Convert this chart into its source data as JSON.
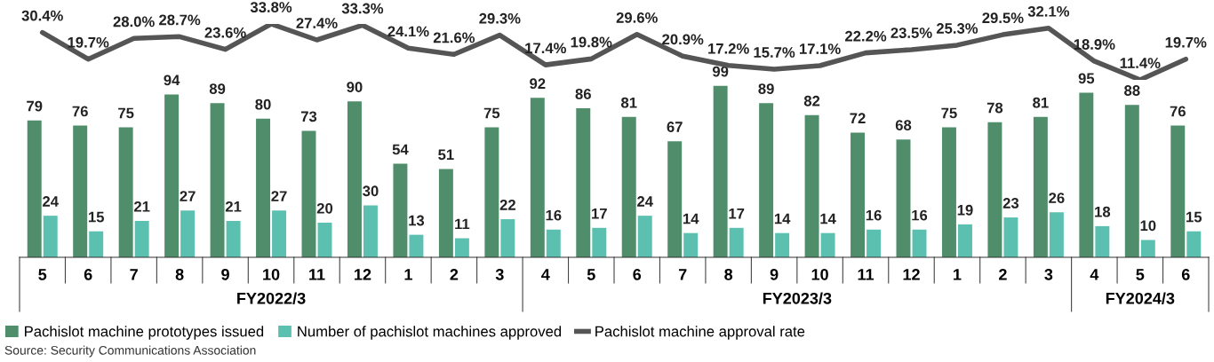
{
  "chart_data": [
    {
      "type": "bar",
      "categories": [
        "5",
        "6",
        "7",
        "8",
        "9",
        "10",
        "11",
        "12",
        "1",
        "2",
        "3",
        "4",
        "5",
        "6",
        "7",
        "8",
        "9",
        "10",
        "11",
        "12",
        "1",
        "2",
        "3",
        "4",
        "5",
        "6"
      ],
      "series": [
        {
          "name": "Pachislot machine prototypes issued",
          "color": "#4f8d6b",
          "values": [
            79,
            76,
            75,
            94,
            89,
            80,
            73,
            90,
            54,
            51,
            75,
            92,
            86,
            81,
            67,
            99,
            89,
            82,
            72,
            68,
            75,
            78,
            81,
            95,
            88,
            76
          ]
        },
        {
          "name": "Number of pachislot machines approved",
          "color": "#5cc0b1",
          "values": [
            24,
            15,
            21,
            27,
            21,
            27,
            20,
            30,
            13,
            11,
            22,
            16,
            17,
            24,
            14,
            17,
            14,
            14,
            16,
            16,
            19,
            23,
            26,
            18,
            10,
            15
          ]
        }
      ],
      "annotations": [
        "FY2022/3",
        "FY2023/3",
        "FY2024/3",
        "Source: Security Communications Association"
      ],
      "data_labels": true,
      "legend": "bottom",
      "grid": false
    },
    {
      "type": "line",
      "categories": [
        "5",
        "6",
        "7",
        "8",
        "9",
        "10",
        "11",
        "12",
        "1",
        "2",
        "3",
        "4",
        "5",
        "6",
        "7",
        "8",
        "9",
        "10",
        "11",
        "12",
        "1",
        "2",
        "3",
        "4",
        "5",
        "6"
      ],
      "series": [
        {
          "name": "Pachislot machine approval rate",
          "color": "#555555",
          "values": [
            30.4,
            19.7,
            28.0,
            28.7,
            23.6,
            33.8,
            27.4,
            33.3,
            24.1,
            21.6,
            29.3,
            17.4,
            19.8,
            29.6,
            20.9,
            17.2,
            15.7,
            17.1,
            22.2,
            23.5,
            25.3,
            29.5,
            32.1,
            18.9,
            11.4,
            19.7
          ],
          "value_labels": [
            "30.4%",
            "19.7%",
            "28.0%",
            "28.7%",
            "23.6%",
            "33.8%",
            "27.4%",
            "33.3%",
            "24.1%",
            "21.6%",
            "29.3%",
            "17.4%",
            "19.8%",
            "29.6%",
            "20.9%",
            "17.2%",
            "15.7%",
            "17.1%",
            "22.2%",
            "23.5%",
            "25.3%",
            "29.5%",
            "32.1%",
            "18.9%",
            "11.4%",
            "19.7%"
          ]
        }
      ],
      "tick_labels": false,
      "legend": "bottom",
      "grid": false,
      "marker": "none",
      "line_style": "solid"
    }
  ]
}
